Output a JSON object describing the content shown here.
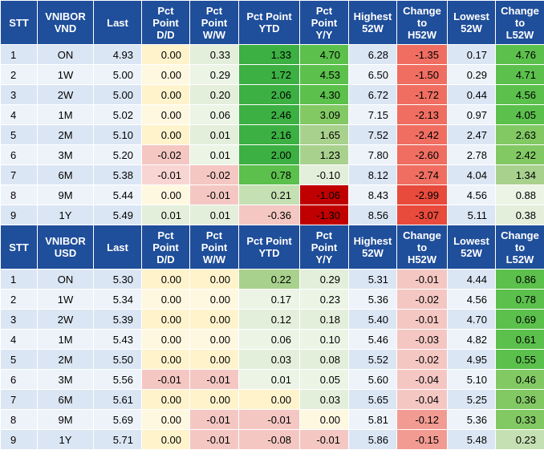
{
  "vnd": {
    "headers": [
      "STT",
      "VNIBOR\nVND",
      "Last",
      "Pct\nPoint\nD/D",
      "Pct\nPoint\nW/W",
      "Pct Point\nYTD",
      "Pct\nPoint\nY/Y",
      "Highest\n52W",
      "Change\nto\nH52W",
      "Lowest\n52W",
      "Change\nto\nL52W"
    ],
    "rows": [
      [
        "1",
        "ON",
        "4.93",
        "0.00",
        "0.33",
        "1.33",
        "4.70",
        "6.28",
        "-1.35",
        "0.17",
        "4.76"
      ],
      [
        "2",
        "1W",
        "5.00",
        "0.00",
        "0.29",
        "1.72",
        "4.53",
        "6.50",
        "-1.50",
        "0.29",
        "4.71"
      ],
      [
        "3",
        "2W",
        "5.00",
        "0.00",
        "0.20",
        "2.06",
        "4.30",
        "6.72",
        "-1.72",
        "0.44",
        "4.56"
      ],
      [
        "4",
        "1M",
        "5.02",
        "0.00",
        "0.06",
        "2.46",
        "3.09",
        "7.15",
        "-2.13",
        "0.97",
        "4.05"
      ],
      [
        "5",
        "2M",
        "5.10",
        "0.00",
        "0.01",
        "2.16",
        "1.65",
        "7.52",
        "-2.42",
        "2.47",
        "2.63"
      ],
      [
        "6",
        "3M",
        "5.20",
        "-0.02",
        "0.01",
        "2.00",
        "1.23",
        "7.80",
        "-2.60",
        "2.78",
        "2.42"
      ],
      [
        "7",
        "6M",
        "5.38",
        "-0.01",
        "-0.02",
        "0.78",
        "-0.10",
        "8.12",
        "-2.74",
        "4.04",
        "1.34"
      ],
      [
        "8",
        "9M",
        "5.44",
        "0.00",
        "-0.01",
        "0.21",
        "-1.06",
        "8.43",
        "-2.99",
        "4.56",
        "0.88"
      ],
      [
        "9",
        "1Y",
        "5.49",
        "0.01",
        "0.01",
        "-0.36",
        "-1.30",
        "8.56",
        "-3.07",
        "5.11",
        "0.38"
      ]
    ]
  },
  "usd": {
    "headers": [
      "STT",
      "VNIBOR\nUSD",
      "Last",
      "Pct\nPoint\nD/D",
      "Pct\nPoint\nW/W",
      "Pct Point\nYTD",
      "Pct\nPoint\nY/Y",
      "Highest\n52W",
      "Change\nto\nH52W",
      "Lowest\n52W",
      "Change\nto\nL52W"
    ],
    "rows": [
      [
        "1",
        "ON",
        "5.30",
        "0.00",
        "0.00",
        "0.22",
        "0.29",
        "5.31",
        "-0.01",
        "4.44",
        "0.86"
      ],
      [
        "2",
        "1W",
        "5.34",
        "0.00",
        "0.00",
        "0.17",
        "0.23",
        "5.36",
        "-0.02",
        "4.56",
        "0.78"
      ],
      [
        "3",
        "2W",
        "5.39",
        "0.00",
        "0.00",
        "0.12",
        "0.18",
        "5.40",
        "-0.01",
        "4.70",
        "0.69"
      ],
      [
        "4",
        "1M",
        "5.43",
        "0.00",
        "0.00",
        "0.06",
        "0.10",
        "5.46",
        "-0.03",
        "4.82",
        "0.61"
      ],
      [
        "5",
        "2M",
        "5.50",
        "0.00",
        "0.00",
        "0.03",
        "0.08",
        "5.52",
        "-0.02",
        "4.95",
        "0.55"
      ],
      [
        "6",
        "3M",
        "5.56",
        "-0.01",
        "-0.01",
        "0.01",
        "0.05",
        "5.60",
        "-0.04",
        "5.10",
        "0.46"
      ],
      [
        "7",
        "6M",
        "5.61",
        "0.00",
        "0.00",
        "0.00",
        "0.03",
        "5.65",
        "-0.04",
        "5.25",
        "0.36"
      ],
      [
        "8",
        "9M",
        "5.69",
        "0.00",
        "-0.01",
        "-0.01",
        "0.00",
        "5.81",
        "-0.12",
        "5.36",
        "0.33"
      ],
      [
        "9",
        "1Y",
        "5.71",
        "0.00",
        "-0.01",
        "-0.08",
        "-0.01",
        "5.86",
        "-0.15",
        "5.48",
        "0.23"
      ]
    ]
  },
  "colors": {
    "header_bg": "#1f4e9a",
    "header_text": "#ffffff",
    "positive_strong": "#3cb043",
    "negative_strong": "#c00000",
    "negative_mid": "#ef6e61",
    "neutral_yellow": "#fff3cc"
  }
}
